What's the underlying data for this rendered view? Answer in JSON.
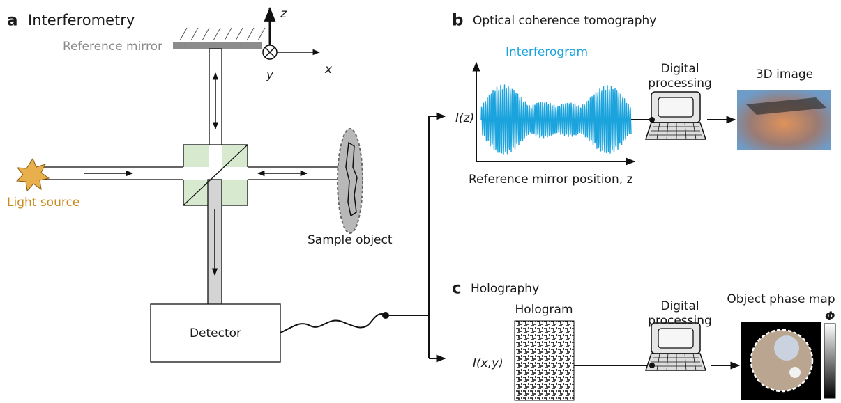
{
  "panel_a": {
    "letter": "a",
    "title": "Interferometry",
    "reference_mirror": "Reference mirror",
    "axes": {
      "z": "z",
      "y": "y",
      "x": "x"
    },
    "light_source": "Light source",
    "sample_object": "Sample object",
    "detector": "Detector"
  },
  "panel_b": {
    "letter": "b",
    "title": "Optical coherence tomography",
    "plot_title": "Interferogram",
    "y_label": "I(z)",
    "x_label": "Reference mirror position, z",
    "processing": [
      "Digital",
      "processing"
    ],
    "output": "3D image"
  },
  "panel_c": {
    "letter": "c",
    "title": "Holography",
    "hologram": "Hologram",
    "y_label": "I(x,y)",
    "processing": [
      "Digital",
      "processing"
    ],
    "output": "Object phase map",
    "colorbar_label": "Φ"
  }
}
